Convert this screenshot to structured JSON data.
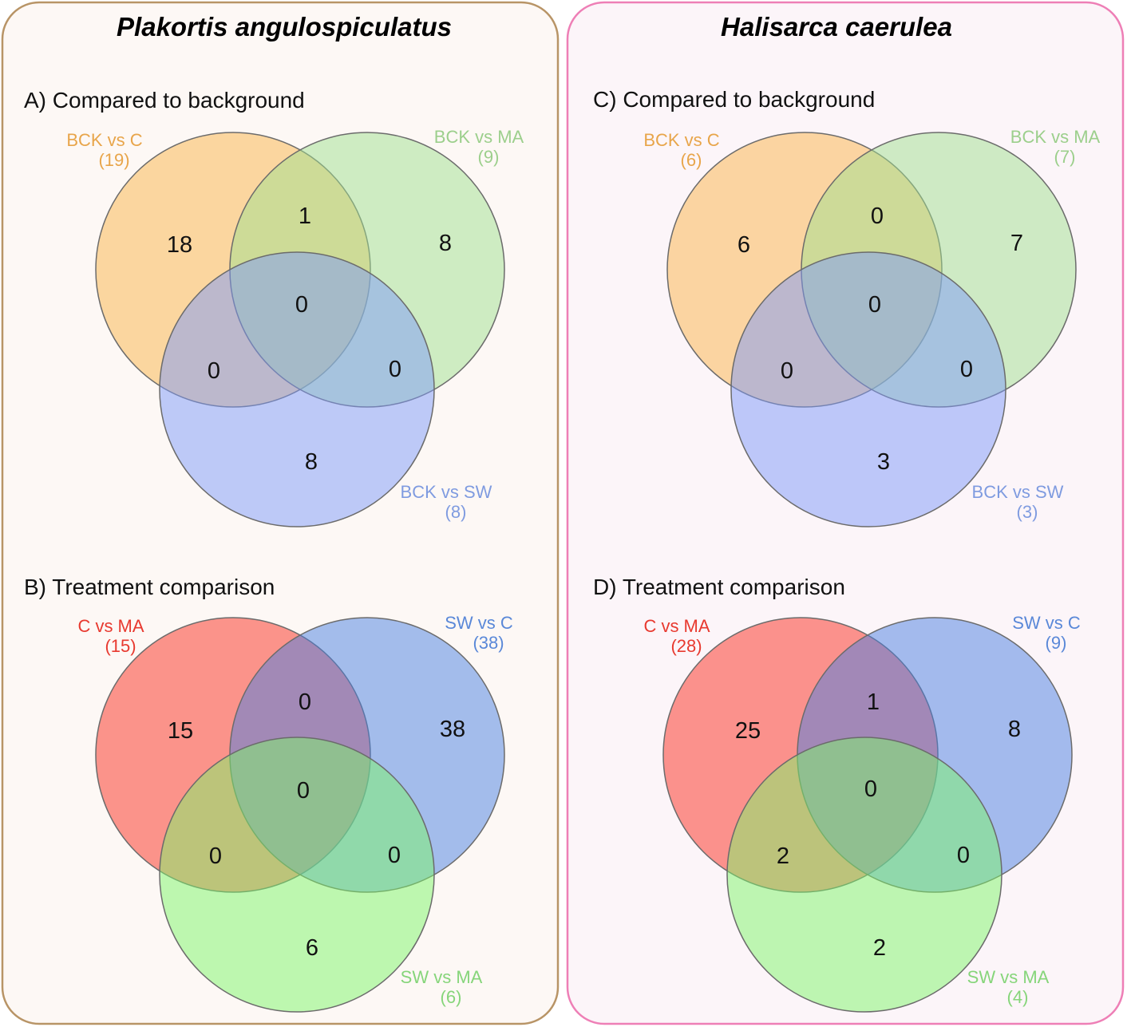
{
  "panels": [
    {
      "species": "Plakortis angulospiculatus",
      "frame_color": "#b89466",
      "frame_fill": "#fdf8f5",
      "sections": [
        {
          "title": "A) Compared to background",
          "sets": [
            {
              "name": "BCK vs C",
              "total": "(19)",
              "fill": "#fab44a",
              "label_color": "#e8a54a"
            },
            {
              "name": "BCK vs MA",
              "total": "(9)",
              "fill": "#9fe08f",
              "label_color": "#9ccf8c"
            },
            {
              "name": "BCK vs SW",
              "total": "(8)",
              "fill": "#7e9af9",
              "label_color": "#7f9be0"
            }
          ],
          "regions": {
            "only_1": "18",
            "only_2": "8",
            "only_3": "8",
            "r12": "1",
            "r13": "0",
            "r23": "0",
            "r123": "0"
          }
        },
        {
          "title": "B) Treatment comparison",
          "sets": [
            {
              "name": "C vs MA",
              "total": "(15)",
              "fill": "#fa2d20",
              "label_color": "#e8392f"
            },
            {
              "name": "SW vs C",
              "total": "(38)",
              "fill": "#4a7fe2",
              "label_color": "#5a88d8"
            },
            {
              "name": "SW vs MA",
              "total": "(6)",
              "fill": "#7ef56a",
              "label_color": "#86d57a"
            }
          ],
          "regions": {
            "only_1": "15",
            "only_2": "38",
            "only_3": "6",
            "r12": "0",
            "r13": "0",
            "r23": "0",
            "r123": "0"
          }
        }
      ]
    },
    {
      "species": "Halisarca caerulea",
      "frame_color": "#ee7fb6",
      "frame_fill": "#fcf5f9",
      "sections": [
        {
          "title": "C) Compared to background",
          "sets": [
            {
              "name": "BCK vs C",
              "total": "(6)",
              "fill": "#fab44a",
              "label_color": "#e8a54a"
            },
            {
              "name": "BCK vs MA",
              "total": "(7)",
              "fill": "#9fe08f",
              "label_color": "#9ccf8c"
            },
            {
              "name": "BCK vs SW",
              "total": "(3)",
              "fill": "#7e9af9",
              "label_color": "#7f9be0"
            }
          ],
          "regions": {
            "only_1": "6",
            "only_2": "7",
            "only_3": "3",
            "r12": "0",
            "r13": "0",
            "r23": "0",
            "r123": "0"
          }
        },
        {
          "title": "D) Treatment comparison",
          "sets": [
            {
              "name": "C vs MA",
              "total": "(28)",
              "fill": "#fa2d20",
              "label_color": "#e8392f"
            },
            {
              "name": "SW vs C",
              "total": "(9)",
              "fill": "#4a7fe2",
              "label_color": "#5a88d8"
            },
            {
              "name": "SW vs MA",
              "total": "(4)",
              "fill": "#7ef56a",
              "label_color": "#86d57a"
            }
          ],
          "regions": {
            "only_1": "25",
            "only_2": "8",
            "only_3": "2",
            "r12": "1",
            "r13": "2",
            "r23": "0",
            "r123": "0"
          }
        }
      ]
    }
  ]
}
